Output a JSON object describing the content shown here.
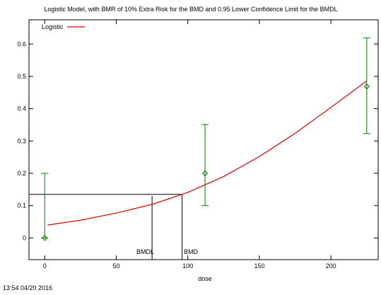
{
  "chart_data": {
    "type": "line",
    "title": "Logistic Model, with BMR of 10% Extra Risk for the BMD and 0.95 Lower Confidence Limit for the BMDL",
    "xlabel": "dose",
    "ylabel": "",
    "xlim": [
      -11,
      233
    ],
    "ylim": [
      -0.067,
      0.675
    ],
    "x_ticks": [
      0,
      50,
      100,
      150,
      200
    ],
    "y_ticks": [
      0,
      0.1,
      0.2,
      0.3,
      0.4,
      0.5,
      0.6
    ],
    "x_tick_labels": [
      "0",
      "50",
      "100",
      "150",
      "200"
    ],
    "y_tick_labels": [
      "0",
      "0.1",
      "0.2",
      "0.3",
      "0.4",
      "0.5",
      "0.6"
    ],
    "grid": false,
    "legend": {
      "position": "top-left",
      "entries": [
        {
          "name": "Logistic",
          "color": "#e00000"
        }
      ]
    },
    "model_curve": {
      "name": "Logistic",
      "color": "#e00000",
      "x": [
        2,
        25,
        50,
        75,
        96,
        100,
        125,
        150,
        175,
        200,
        225
      ],
      "y": [
        0.04,
        0.055,
        0.077,
        0.104,
        0.135,
        0.141,
        0.19,
        0.252,
        0.324,
        0.404,
        0.486
      ]
    },
    "observed": {
      "color": "#008000",
      "x": [
        0,
        112,
        225
      ],
      "y": [
        0,
        0.2,
        0.469
      ],
      "lower": [
        0,
        0.1,
        0.323
      ],
      "upper": [
        0.2,
        0.351,
        0.619
      ]
    },
    "bmr_response": 0.135,
    "bmd": 96,
    "bmdl": 75,
    "annotations": {
      "bmd_label": "BMD",
      "bmdl_label": "BMDL"
    },
    "timestamp": "13:54 04/20 2016"
  }
}
